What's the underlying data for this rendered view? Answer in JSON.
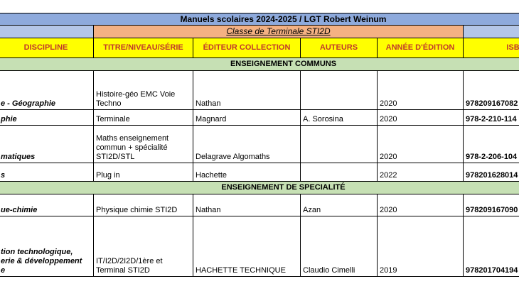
{
  "header": {
    "title": "Manuels scolaires 2024-2025 / LGT Robert Weinum",
    "subtitle": "Classe de Terminale STI2D"
  },
  "table": {
    "columns": [
      "DISCIPLINE",
      "TITRE/NIVEAU/SÉRIE",
      "ÉDITEUR COLLECTION",
      "AUTEURS",
      "ANNÉE D'ÉDITION",
      "ISBN"
    ],
    "sections": [
      {
        "title": "ENSEIGNEMENT COMMUNS",
        "rows": [
          [
            "e - Géographie",
            "Histoire-géo EMC Voie Techno",
            "Nathan",
            null,
            "2020",
            "978209167082"
          ],
          [
            "phie",
            "Terminale",
            "Magnard",
            "A. Sorosina",
            "2020",
            "978-2-210-114"
          ],
          [
            "matiques",
            "Maths enseignement commun + spécialité STI2D/STL",
            "Delagrave Algomaths",
            null,
            "2020",
            "978-2-206-104"
          ],
          [
            "s",
            "Plug in",
            "Hachette",
            null,
            "2022",
            "978201628014"
          ]
        ]
      },
      {
        "title": "ENSEIGNEMENT DE SPECIALITÉ",
        "rows": [
          [
            "ue-chimie",
            "Physique chimie STI2D",
            "Nathan",
            "Azan",
            "2020",
            "978209167090"
          ],
          [
            "tion technologique,\nerie & développement\ne",
            "IT/I2D/2I2D/1ère et Terminal STI2D",
            "HACHETTE TECHNIQUE",
            "Claudio Cimelli",
            "2019",
            "978201704194"
          ]
        ]
      }
    ]
  }
}
